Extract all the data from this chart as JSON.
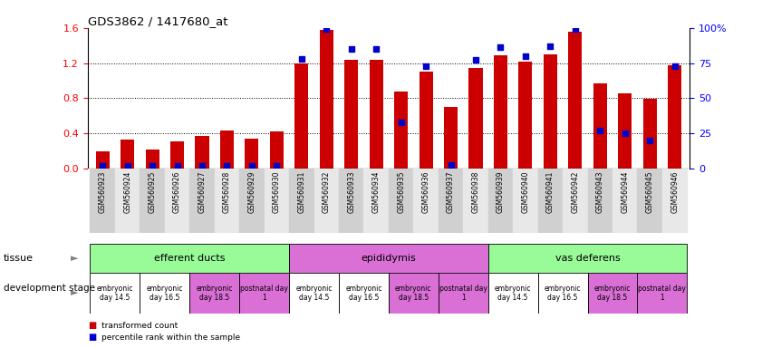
{
  "title": "GDS3862 / 1417680_at",
  "samples": [
    "GSM560923",
    "GSM560924",
    "GSM560925",
    "GSM560926",
    "GSM560927",
    "GSM560928",
    "GSM560929",
    "GSM560930",
    "GSM560931",
    "GSM560932",
    "GSM560933",
    "GSM560934",
    "GSM560935",
    "GSM560936",
    "GSM560937",
    "GSM560938",
    "GSM560939",
    "GSM560940",
    "GSM560941",
    "GSM560942",
    "GSM560943",
    "GSM560944",
    "GSM560945",
    "GSM560946"
  ],
  "transformed_count": [
    0.2,
    0.33,
    0.22,
    0.31,
    0.37,
    0.43,
    0.34,
    0.42,
    1.2,
    1.58,
    1.24,
    1.24,
    0.88,
    1.1,
    0.7,
    1.14,
    1.29,
    1.22,
    1.3,
    1.56,
    0.97,
    0.86,
    0.79,
    1.18
  ],
  "percentile_rank": [
    2,
    2,
    2,
    2,
    2,
    2,
    2,
    2,
    78,
    99,
    85,
    85,
    33,
    73,
    3,
    77,
    86,
    80,
    87,
    99,
    27,
    25,
    20,
    73
  ],
  "tissues": [
    {
      "label": "efferent ducts",
      "start": 0,
      "end": 8,
      "color": "#98FB98"
    },
    {
      "label": "epididymis",
      "start": 8,
      "end": 16,
      "color": "#DA70D6"
    },
    {
      "label": "vas deferens",
      "start": 16,
      "end": 24,
      "color": "#98FB98"
    }
  ],
  "dev_stages": [
    {
      "label": "embryonic\nday 14.5",
      "start": 0,
      "end": 2,
      "color": "#ffffff"
    },
    {
      "label": "embryonic\nday 16.5",
      "start": 2,
      "end": 4,
      "color": "#ffffff"
    },
    {
      "label": "embryonic\nday 18.5",
      "start": 4,
      "end": 6,
      "color": "#DA70D6"
    },
    {
      "label": "postnatal day\n1",
      "start": 6,
      "end": 8,
      "color": "#DA70D6"
    },
    {
      "label": "embryonic\nday 14.5",
      "start": 8,
      "end": 10,
      "color": "#ffffff"
    },
    {
      "label": "embryonic\nday 16.5",
      "start": 10,
      "end": 12,
      "color": "#ffffff"
    },
    {
      "label": "embryonic\nday 18.5",
      "start": 12,
      "end": 14,
      "color": "#DA70D6"
    },
    {
      "label": "postnatal day\n1",
      "start": 14,
      "end": 16,
      "color": "#DA70D6"
    },
    {
      "label": "embryonic\nday 14.5",
      "start": 16,
      "end": 18,
      "color": "#ffffff"
    },
    {
      "label": "embryonic\nday 16.5",
      "start": 18,
      "end": 20,
      "color": "#ffffff"
    },
    {
      "label": "embryonic\nday 18.5",
      "start": 20,
      "end": 22,
      "color": "#DA70D6"
    },
    {
      "label": "postnatal day\n1",
      "start": 22,
      "end": 24,
      "color": "#DA70D6"
    }
  ],
  "bar_color": "#CC0000",
  "dot_color": "#0000CC",
  "ylim_left": [
    0,
    1.6
  ],
  "ylim_right": [
    0,
    100
  ],
  "yticks_left": [
    0.0,
    0.4,
    0.8,
    1.2,
    1.6
  ],
  "yticks_right": [
    0,
    25,
    50,
    75,
    100
  ],
  "background_color": "#ffffff",
  "bar_width": 0.55
}
